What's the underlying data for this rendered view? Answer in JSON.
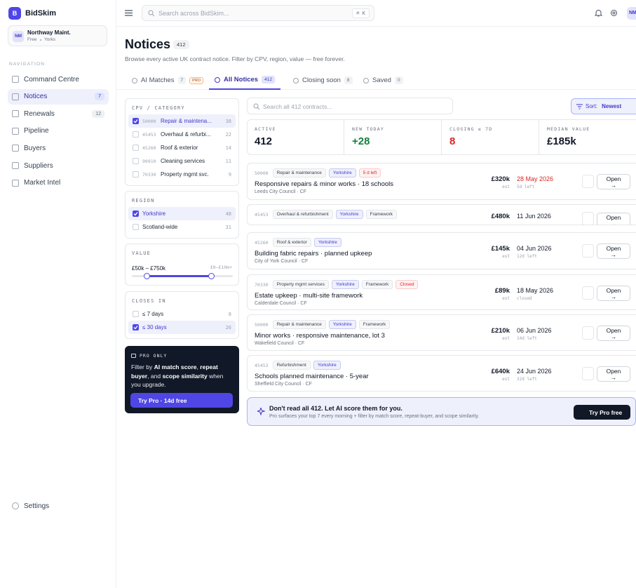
{
  "sidebar": {
    "logo": "B",
    "brand": "BidSkim",
    "account": {
      "avatar": "NM",
      "name": "Northway Maint.",
      "plan": "Free",
      "region": "Yorks"
    },
    "nav_heading": "NAVIGATION",
    "nav": [
      {
        "label": "Command Centre"
      },
      {
        "label": "Notices",
        "count": 7
      },
      {
        "label": "Renewals",
        "count": 12
      },
      {
        "label": "Pipeline"
      },
      {
        "label": "Buyers"
      },
      {
        "label": "Suppliers"
      },
      {
        "label": "Market Intel"
      }
    ],
    "settings": "Settings"
  },
  "topbar": {
    "search": "Search across BidSkim...",
    "shortcut": "⌘ K",
    "avatar": "NM"
  },
  "header": {
    "title": "Notices",
    "count": 412,
    "subtitle": "Browse every active UK contract notice. Filter by CPV, region, value — free forever."
  },
  "tabs": [
    {
      "label": "AI Matches",
      "count": 7,
      "badge": "PRO"
    },
    {
      "label": "All Notices",
      "count": 412
    },
    {
      "label": "Closing soon",
      "count": 8
    },
    {
      "label": "Saved",
      "count": 0
    }
  ],
  "filters": {
    "cpv": {
      "heading": "CPV / CATEGORY",
      "items": [
        {
          "code": "50000",
          "label": "Repair & maintena...",
          "count": 38,
          "checked": true
        },
        {
          "code": "45453",
          "label": "Overhaul & refurbi...",
          "count": 22
        },
        {
          "code": "45260",
          "label": "Roof & exterior",
          "count": 14
        },
        {
          "code": "90910",
          "label": "Cleaning services",
          "count": 11
        },
        {
          "code": "70330",
          "label": "Property mgmt svc.",
          "count": 9
        }
      ]
    },
    "region": {
      "heading": "REGION",
      "items": [
        {
          "label": "Yorkshire",
          "count": 48,
          "checked": true
        },
        {
          "label": "Scotland-wide",
          "count": 31
        }
      ]
    },
    "value": {
      "heading": "VALUE",
      "range": "£50k – £750k",
      "limits": "£0–£10m+"
    },
    "closes": {
      "heading": "CLOSES IN",
      "items": [
        {
          "label": "≤ 7 days",
          "count": 8
        },
        {
          "label": "≤ 30 days",
          "count": 26,
          "checked": true
        }
      ]
    },
    "pro": {
      "badge": "PRO ONLY",
      "text": [
        "Filter by ",
        "AI match score",
        ", ",
        "repeat buyer",
        ", and ",
        "scope similarity",
        " when you upgrade."
      ],
      "button": "Try Pro · 14d free"
    }
  },
  "search": "Search all 412 contracts...",
  "sort": {
    "label": "Sort:",
    "value": "Newest"
  },
  "stats": [
    {
      "label": "ACTIVE",
      "value": "412"
    },
    {
      "label": "NEW TODAY",
      "value": "+28",
      "color": "#15803d"
    },
    {
      "label": "CLOSING ≤ 7D",
      "value": "8",
      "color": "#dc2626"
    },
    {
      "label": "MEDIAN VALUE",
      "value": "£185k"
    }
  ],
  "notices": [
    {
      "code": "50000",
      "tags": [
        {
          "text": "Repair & maintenance"
        },
        {
          "text": "Yorkshire"
        },
        {
          "text": "5 d left",
          "color": "#dc2626"
        }
      ],
      "title": "Responsive repairs & minor works · 18 schools",
      "buyer": "Leeds City Council · CF",
      "value": "£320k",
      "note": "est",
      "date": "28 May 2026",
      "date_color": "#dc2626",
      "due": "5d left",
      "action": "Open →"
    },
    {
      "code": "45453",
      "tags": [
        {
          "text": "Overhaul & refurbishment"
        },
        {
          "text": "Yorkshire"
        },
        {
          "text": "Framework"
        }
      ],
      "value": "£480k",
      "date": "11 Jun 2026",
      "action": "Open →"
    },
    {
      "code": "45260",
      "tags": [
        {
          "text": "Roof & exterior"
        },
        {
          "text": "Yorkshire"
        }
      ],
      "title": "Building fabric repairs · planned upkeep",
      "buyer": "City of York Council · CF",
      "value": "£145k",
      "note": "est",
      "date": "04 Jun 2026",
      "due": "12d left",
      "action": "Open →"
    },
    {
      "code": "70330",
      "tags": [
        {
          "text": "Property mgmt services"
        },
        {
          "text": "Yorkshire"
        },
        {
          "text": "Framework"
        },
        {
          "text": "Closed",
          "color": "#dc2626"
        }
      ],
      "title": "Estate upkeep · multi-site framework",
      "buyer": "Calderdale Council · CF",
      "value": "£89k",
      "note": "est",
      "date": "18 May 2026",
      "due": "closed",
      "action": "Open →"
    },
    {
      "code": "50000",
      "tags": [
        {
          "text": "Repair & maintenance"
        },
        {
          "text": "Yorkshire"
        },
        {
          "text": "Framework"
        }
      ],
      "title": "Minor works · responsive maintenance, lot 3",
      "buyer": "Wakefield Council · CF",
      "value": "£210k",
      "note": "est",
      "date": "06 Jun 2026",
      "due": "14d left",
      "action": "Open →"
    },
    {
      "code": "45453",
      "tags": [
        {
          "text": "Refurbishment"
        },
        {
          "text": "Yorkshire"
        }
      ],
      "title": "Schools planned maintenance · 5-year",
      "buyer": "Sheffield City Council · CF",
      "value": "£640k",
      "note": "est",
      "date": "24 Jun 2026",
      "due": "32d left",
      "action": "Open →"
    }
  ],
  "banner": {
    "title": "Don't read all 412. Let AI score them for you.",
    "text": "Pro surfaces your top 7 every morning + filter by match score, repeat-buyer, and scope similarity.",
    "button": "Try Pro free"
  }
}
